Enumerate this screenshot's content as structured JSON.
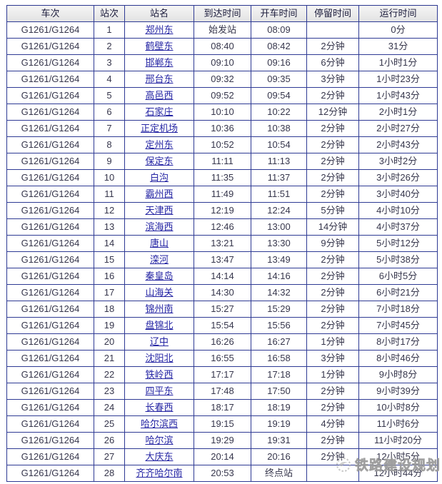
{
  "table": {
    "columns": [
      "车次",
      "站次",
      "站名",
      "到达时间",
      "开车时间",
      "停留时间",
      "运行时间"
    ],
    "column_keys": [
      "train",
      "seq",
      "station",
      "arrive",
      "depart",
      "stop",
      "duration"
    ],
    "rows": [
      {
        "train": "G1261/G1264",
        "seq": "1",
        "station": "郑州东",
        "arrive": "始发站",
        "depart": "08:09",
        "stop": "",
        "duration": "0分"
      },
      {
        "train": "G1261/G1264",
        "seq": "2",
        "station": "鹤壁东",
        "arrive": "08:40",
        "depart": "08:42",
        "stop": "2分钟",
        "duration": "31分"
      },
      {
        "train": "G1261/G1264",
        "seq": "3",
        "station": "邯郸东",
        "arrive": "09:10",
        "depart": "09:16",
        "stop": "6分钟",
        "duration": "1小时1分"
      },
      {
        "train": "G1261/G1264",
        "seq": "4",
        "station": "邢台东",
        "arrive": "09:32",
        "depart": "09:35",
        "stop": "3分钟",
        "duration": "1小时23分"
      },
      {
        "train": "G1261/G1264",
        "seq": "5",
        "station": "高邑西",
        "arrive": "09:52",
        "depart": "09:54",
        "stop": "2分钟",
        "duration": "1小时43分"
      },
      {
        "train": "G1261/G1264",
        "seq": "6",
        "station": "石家庄",
        "arrive": "10:10",
        "depart": "10:22",
        "stop": "12分钟",
        "duration": "2小时1分"
      },
      {
        "train": "G1261/G1264",
        "seq": "7",
        "station": "正定机场",
        "arrive": "10:36",
        "depart": "10:38",
        "stop": "2分钟",
        "duration": "2小时27分"
      },
      {
        "train": "G1261/G1264",
        "seq": "8",
        "station": "定州东",
        "arrive": "10:52",
        "depart": "10:54",
        "stop": "2分钟",
        "duration": "2小时43分"
      },
      {
        "train": "G1261/G1264",
        "seq": "9",
        "station": "保定东",
        "arrive": "11:11",
        "depart": "11:13",
        "stop": "2分钟",
        "duration": "3小时2分"
      },
      {
        "train": "G1261/G1264",
        "seq": "10",
        "station": "白沟",
        "arrive": "11:35",
        "depart": "11:37",
        "stop": "2分钟",
        "duration": "3小时26分"
      },
      {
        "train": "G1261/G1264",
        "seq": "11",
        "station": "霸州西",
        "arrive": "11:49",
        "depart": "11:51",
        "stop": "2分钟",
        "duration": "3小时40分"
      },
      {
        "train": "G1261/G1264",
        "seq": "12",
        "station": "天津西",
        "arrive": "12:19",
        "depart": "12:24",
        "stop": "5分钟",
        "duration": "4小时10分"
      },
      {
        "train": "G1261/G1264",
        "seq": "13",
        "station": "滨海西",
        "arrive": "12:46",
        "depart": "13:00",
        "stop": "14分钟",
        "duration": "4小时37分"
      },
      {
        "train": "G1261/G1264",
        "seq": "14",
        "station": "唐山",
        "arrive": "13:21",
        "depart": "13:30",
        "stop": "9分钟",
        "duration": "5小时12分"
      },
      {
        "train": "G1261/G1264",
        "seq": "15",
        "station": "滦河",
        "arrive": "13:47",
        "depart": "13:49",
        "stop": "2分钟",
        "duration": "5小时38分"
      },
      {
        "train": "G1261/G1264",
        "seq": "16",
        "station": "秦皇岛",
        "arrive": "14:14",
        "depart": "14:16",
        "stop": "2分钟",
        "duration": "6小时5分"
      },
      {
        "train": "G1261/G1264",
        "seq": "17",
        "station": "山海关",
        "arrive": "14:30",
        "depart": "14:32",
        "stop": "2分钟",
        "duration": "6小时21分"
      },
      {
        "train": "G1261/G1264",
        "seq": "18",
        "station": "锦州南",
        "arrive": "15:27",
        "depart": "15:29",
        "stop": "2分钟",
        "duration": "7小时18分"
      },
      {
        "train": "G1261/G1264",
        "seq": "19",
        "station": "盘锦北",
        "arrive": "15:54",
        "depart": "15:56",
        "stop": "2分钟",
        "duration": "7小时45分"
      },
      {
        "train": "G1261/G1264",
        "seq": "20",
        "station": "辽中",
        "arrive": "16:26",
        "depart": "16:27",
        "stop": "1分钟",
        "duration": "8小时17分"
      },
      {
        "train": "G1261/G1264",
        "seq": "21",
        "station": "沈阳北",
        "arrive": "16:55",
        "depart": "16:58",
        "stop": "3分钟",
        "duration": "8小时46分"
      },
      {
        "train": "G1261/G1264",
        "seq": "22",
        "station": "铁岭西",
        "arrive": "17:17",
        "depart": "17:18",
        "stop": "1分钟",
        "duration": "9小时8分"
      },
      {
        "train": "G1261/G1264",
        "seq": "23",
        "station": "四平东",
        "arrive": "17:48",
        "depart": "17:50",
        "stop": "2分钟",
        "duration": "9小时39分"
      },
      {
        "train": "G1261/G1264",
        "seq": "24",
        "station": "长春西",
        "arrive": "18:17",
        "depart": "18:19",
        "stop": "2分钟",
        "duration": "10小时8分"
      },
      {
        "train": "G1261/G1264",
        "seq": "25",
        "station": "哈尔滨西",
        "arrive": "19:15",
        "depart": "19:19",
        "stop": "4分钟",
        "duration": "11小时6分"
      },
      {
        "train": "G1261/G1264",
        "seq": "26",
        "station": "哈尔滨",
        "arrive": "19:29",
        "depart": "19:31",
        "stop": "2分钟",
        "duration": "11小时20分"
      },
      {
        "train": "G1261/G1264",
        "seq": "27",
        "station": "大庆东",
        "arrive": "20:14",
        "depart": "20:16",
        "stop": "2分钟",
        "duration": "12小时5分"
      },
      {
        "train": "G1261/G1264",
        "seq": "28",
        "station": "齐齐哈尔南",
        "arrive": "20:53",
        "depart": "终点站",
        "stop": "",
        "duration": "12小时44分"
      }
    ]
  },
  "watermark": {
    "text": "铁路建设规划",
    "icon": "swirl-logo-icon"
  },
  "colors": {
    "border": "#2e3a94",
    "header_bg": "#ebebeb",
    "link": "#2525a4",
    "text": "#36364c",
    "watermark": "#afafaf"
  }
}
